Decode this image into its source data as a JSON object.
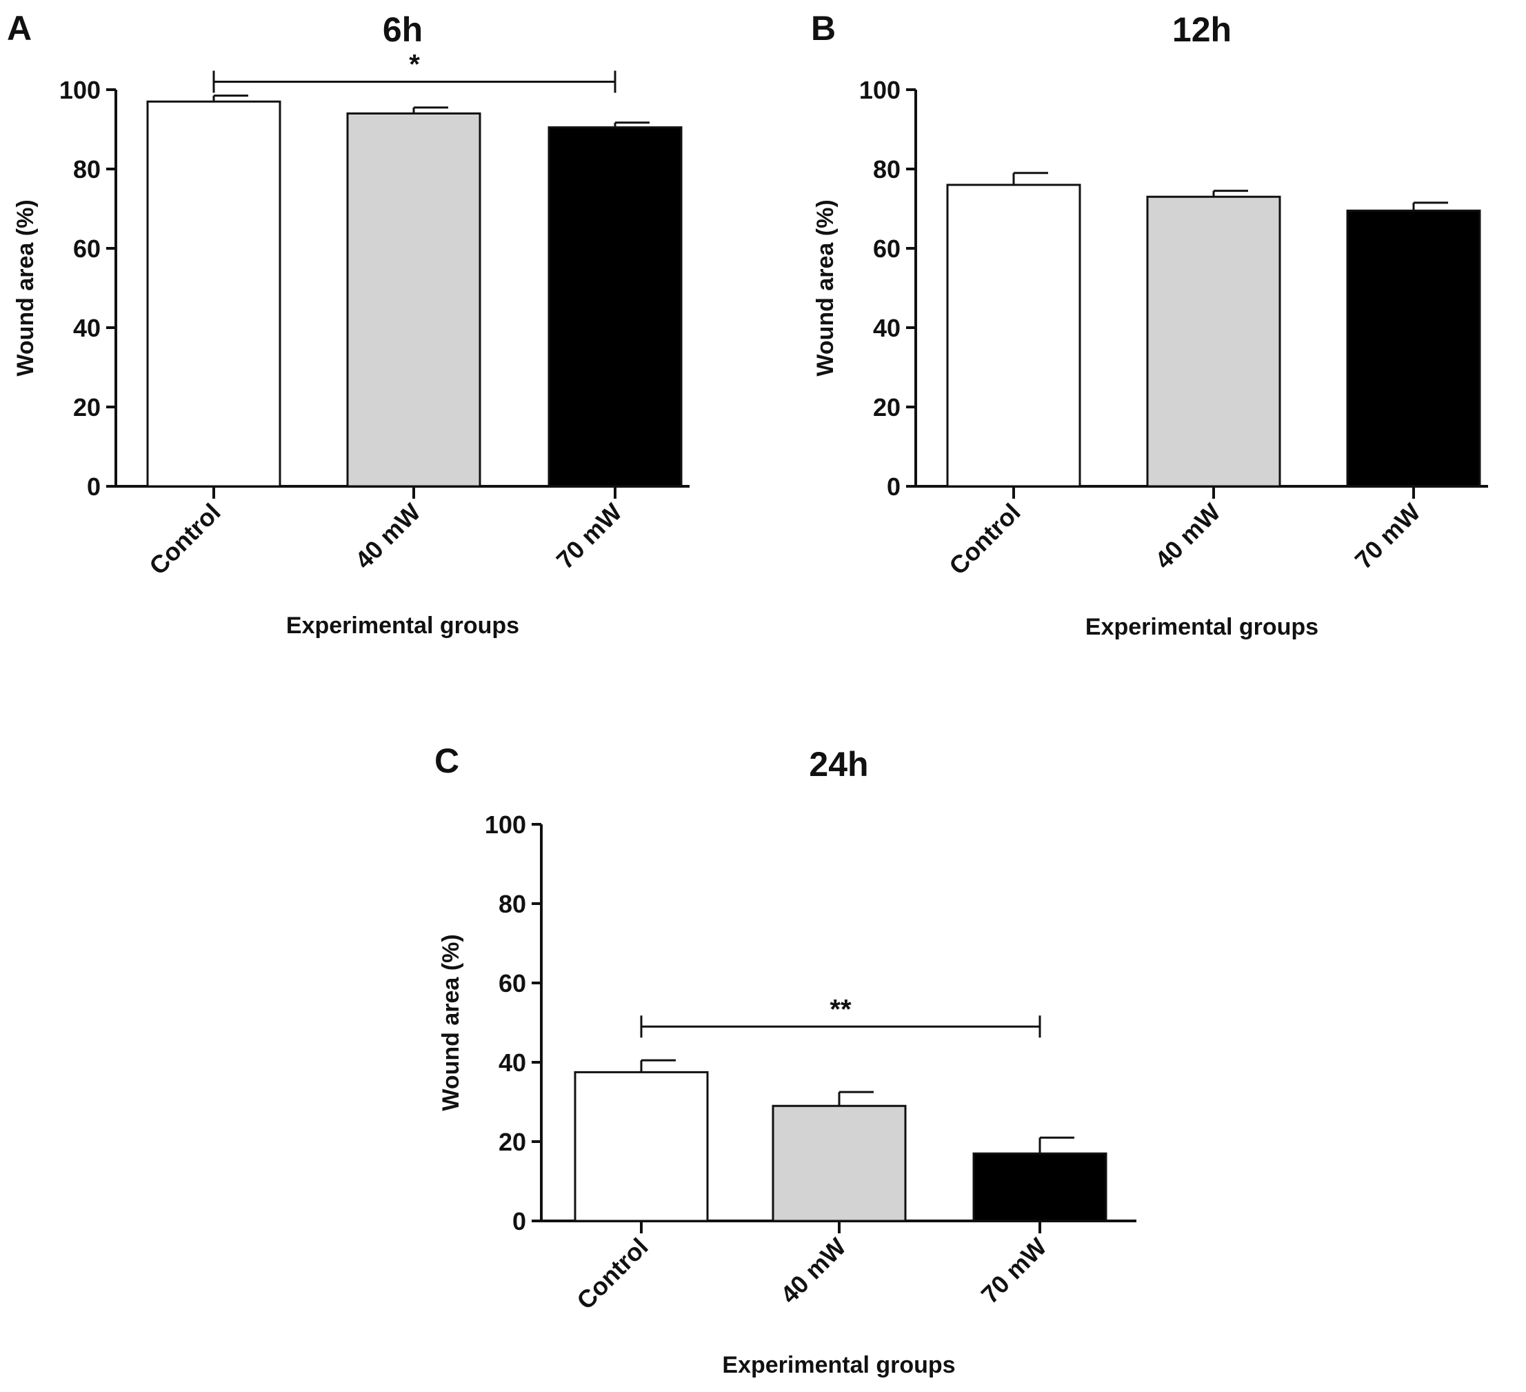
{
  "chart_data": [
    {
      "type": "bar",
      "panel": "A",
      "title": "6h",
      "xlabel": "Experimental groups",
      "ylabel": "Wound area (%)",
      "ylim": [
        0,
        100
      ],
      "yticks": [
        "0",
        "20",
        "40",
        "60",
        "80",
        "100"
      ],
      "categories": [
        "Control",
        "40 mW",
        "70 mW"
      ],
      "values": [
        97,
        94,
        90.5
      ],
      "errors": [
        1.5,
        1.5,
        1.2
      ],
      "colors": [
        "#ffffff",
        "#d3d3d3",
        "#000000"
      ],
      "significance": [
        {
          "from": 0,
          "to": 2,
          "label": "*",
          "y": 102
        }
      ]
    },
    {
      "type": "bar",
      "panel": "B",
      "title": "12h",
      "xlabel": "Experimental groups",
      "ylabel": "Wound area (%)",
      "ylim": [
        0,
        100
      ],
      "yticks": [
        "0",
        "20",
        "40",
        "60",
        "80",
        "100"
      ],
      "categories": [
        "Control",
        "40 mW",
        "70 mW"
      ],
      "values": [
        76,
        73,
        69.5
      ],
      "errors": [
        3,
        1.5,
        2
      ],
      "colors": [
        "#ffffff",
        "#d3d3d3",
        "#000000"
      ],
      "significance": []
    },
    {
      "type": "bar",
      "panel": "C",
      "title": "24h",
      "xlabel": "Experimental groups",
      "ylabel": "Wound area (%)",
      "ylim": [
        0,
        100
      ],
      "yticks": [
        "0",
        "20",
        "40",
        "60",
        "80",
        "100"
      ],
      "categories": [
        "Control",
        "40 mW",
        "70 mW"
      ],
      "values": [
        37.5,
        29,
        17
      ],
      "errors": [
        3,
        3.5,
        4
      ],
      "colors": [
        "#ffffff",
        "#d3d3d3",
        "#000000"
      ],
      "significance": [
        {
          "from": 0,
          "to": 2,
          "label": "**",
          "y": 49
        }
      ]
    }
  ]
}
